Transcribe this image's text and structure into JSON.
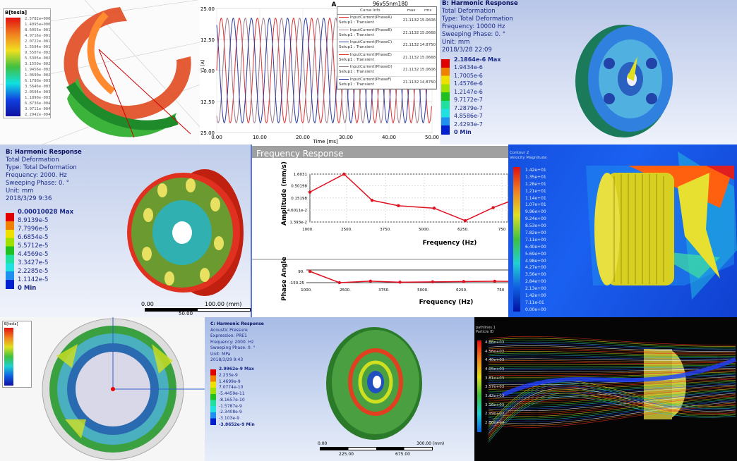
{
  "panel_magnetic": {
    "legend_title": "B[tesla]",
    "legend_values": [
      "2.5782e+000",
      "1.4095e+000",
      "8.6055e-001",
      "4.9716e-001",
      "2.0722e-001",
      "1.5594e-001",
      "9.5507e-002",
      "5.5305e-002",
      "3.1550e-002",
      "1.9456e-002",
      "1.0690e-002",
      "6.1780e-003",
      "3.5646e-003",
      "2.0594e-003",
      "1.1890e-003",
      "6.8736e-004",
      "3.9711e-004",
      "2.2942e-004"
    ]
  },
  "panel_current": {
    "title": "A",
    "file_label": "96v55nm180",
    "table_headers": [
      "Curve Info",
      "max",
      "rms"
    ],
    "curves": [
      {
        "name": "InputCurrent(PhaseA)",
        "setup": "Setup1 : Transient",
        "max": "21.1132",
        "rms": "15.0606",
        "color": "#e03030",
        "phase": 0
      },
      {
        "name": "InputCurrent(PhaseB)",
        "setup": "Setup1 : Transient",
        "max": "21.1132",
        "rms": "15.0668",
        "color": "#9a7a8a",
        "phase": 120
      },
      {
        "name": "InputCurrent(PhaseC)",
        "setup": "Setup1 : Transient",
        "max": "21.1132",
        "rms": "14.8750",
        "color": "#2a3aa0",
        "phase": 240
      },
      {
        "name": "InputCurrent(PhaseE)",
        "setup": "Setup1 : Transient",
        "max": "21.1132",
        "rms": "15.0668",
        "color": "#e03030",
        "phase": 0
      },
      {
        "name": "InputCurrent(PhaseD)",
        "setup": "Setup1 : Transient",
        "max": "21.1132",
        "rms": "15.0606",
        "color": "#9a7a8a",
        "phase": 120
      },
      {
        "name": "InputCurrent(PhaseF)",
        "setup": "Setup1 : Transient",
        "max": "21.1132",
        "rms": "14.8750",
        "color": "#2a3aa0",
        "phase": 240
      }
    ]
  },
  "panel_harmonic_10k": {
    "lines": [
      "B: Harmonic Response",
      "Total Deformation",
      "Type: Total Deformation",
      "Frequency: 10000 Hz",
      "Sweeping Phase: 0. °",
      "Unit: mm",
      "2018/3/28 22:09"
    ],
    "legend_values": [
      "2.1864e-6 Max",
      "1.9434e-6",
      "1.7005e-6",
      "1.4576e-6",
      "1.2147e-6",
      "9.7172e-7",
      "7.2879e-7",
      "4.8586e-7",
      "2.4293e-7",
      "0 Min"
    ]
  },
  "panel_harmonic_2k": {
    "lines": [
      "B: Harmonic Response",
      "Total Deformation",
      "Type: Total Deformation",
      "Frequency: 2000. Hz",
      "Sweeping Phase: 0. °",
      "Unit: mm",
      "2018/3/29 9:36"
    ],
    "legend_values": [
      "0.00010028 Max",
      "8.9139e-5",
      "7.7996e-5",
      "6.6854e-5",
      "5.5712e-5",
      "4.4569e-5",
      "3.3427e-5",
      "2.2285e-5",
      "1.1142e-5",
      "0 Min"
    ],
    "scale": [
      "0.00",
      "100.00 (mm)",
      "50.00"
    ]
  },
  "panel_freq_response": {
    "header": "Frequency Response"
  },
  "panel_cfd": {
    "legend_title": [
      "Contour 2",
      "Velocity Magnitude"
    ],
    "legend_values": [
      "1.42e+01",
      "1.35e+01",
      "1.28e+01",
      "1.21e+01",
      "1.14e+01",
      "1.07e+01",
      "9.96e+00",
      "9.24e+00",
      "8.53e+00",
      "7.82e+00",
      "7.11e+00",
      "6.40e+00",
      "5.69e+00",
      "4.98e+00",
      "4.27e+00",
      "3.56e+00",
      "2.84e+00",
      "2.13e+00",
      "1.42e+00",
      "7.11e-01",
      "0.00e+00"
    ]
  },
  "panel_stator": {
    "legend_title": "B[tesla]"
  },
  "panel_pressure": {
    "lines": [
      "C: Harmonic Response",
      "Acoustic Pressure",
      "Expression: PRE1",
      "Frequency: 2000. Hz",
      "Sweeping Phase: 0. °",
      "Unit: MPa",
      "2018/3/29 9:43"
    ],
    "legend_values": [
      "2.9962e-9 Max",
      "2.233e-9",
      "1.4699e-9",
      "7.0774e-10",
      "-5.4459e-11",
      "-8.1657e-10",
      "-1.5787e-9",
      "-2.3408e-9",
      "-3.103e-9",
      "-3.8652e-9 Min"
    ],
    "scale": [
      "0.00",
      "300.00 (mm)",
      "225.00",
      "675.00"
    ]
  },
  "panel_streamlines": {
    "legend_title": [
      "pathlines 1",
      "Particle ID"
    ],
    "legend_values": [
      "4.86e+03",
      "4.56e+03",
      "4.40e+03",
      "4.05e+03",
      "3.81e+03",
      "3.57e+03",
      "3.42e+03",
      "3.16e+03",
      "2.99e+03",
      "2.80e+03"
    ]
  },
  "chart_data": [
    {
      "type": "line",
      "title": "A",
      "xlabel": "Time [ms]",
      "ylabel": "Y1 [A]",
      "xlim": [
        0,
        50
      ],
      "ylim": [
        -25,
        25
      ],
      "x_ticks": [
        "0.00",
        "10.00",
        "20.00",
        "30.00",
        "40.00",
        "50.00"
      ],
      "y_ticks": [
        "25.00",
        "12.50",
        "0.00",
        "-12.50",
        "-25.00"
      ],
      "waveform": {
        "amplitude": 21.1132,
        "period_ms": 4.2
      },
      "grid": true,
      "legend": "top-right"
    },
    {
      "type": "line",
      "xlabel": "Frequency (Hz)",
      "ylabel": "Amplitude (mm/s)",
      "log_y": true,
      "x_ticks": [
        "1000.",
        "2500.",
        "3750.",
        "5000.",
        "6250.",
        "750"
      ],
      "y_ticks": [
        "1.6031",
        "0.50198",
        "0.15198",
        "4.6011e-2",
        "1.393e-2"
      ],
      "x": [
        1000,
        2100,
        3000,
        3850,
        5000,
        6000,
        6900,
        7450
      ],
      "values": [
        0.27,
        1.6,
        0.12,
        0.07,
        0.055,
        0.016,
        0.058,
        0.11
      ],
      "grid": true
    },
    {
      "type": "line",
      "xlabel": "Frequency (Hz)",
      "ylabel": "Phase Angle",
      "x_ticks": [
        "1000.",
        "2500.",
        "3750.",
        "5000.",
        "6250.",
        "750"
      ],
      "y_ticks": [
        "90.",
        "-150.25"
      ],
      "x": [
        1000,
        1950,
        2950,
        3900,
        4950,
        5950,
        6950,
        7450
      ],
      "values": [
        90,
        -150.25,
        -118,
        -140,
        -133,
        -126,
        -120,
        -122
      ]
    }
  ]
}
